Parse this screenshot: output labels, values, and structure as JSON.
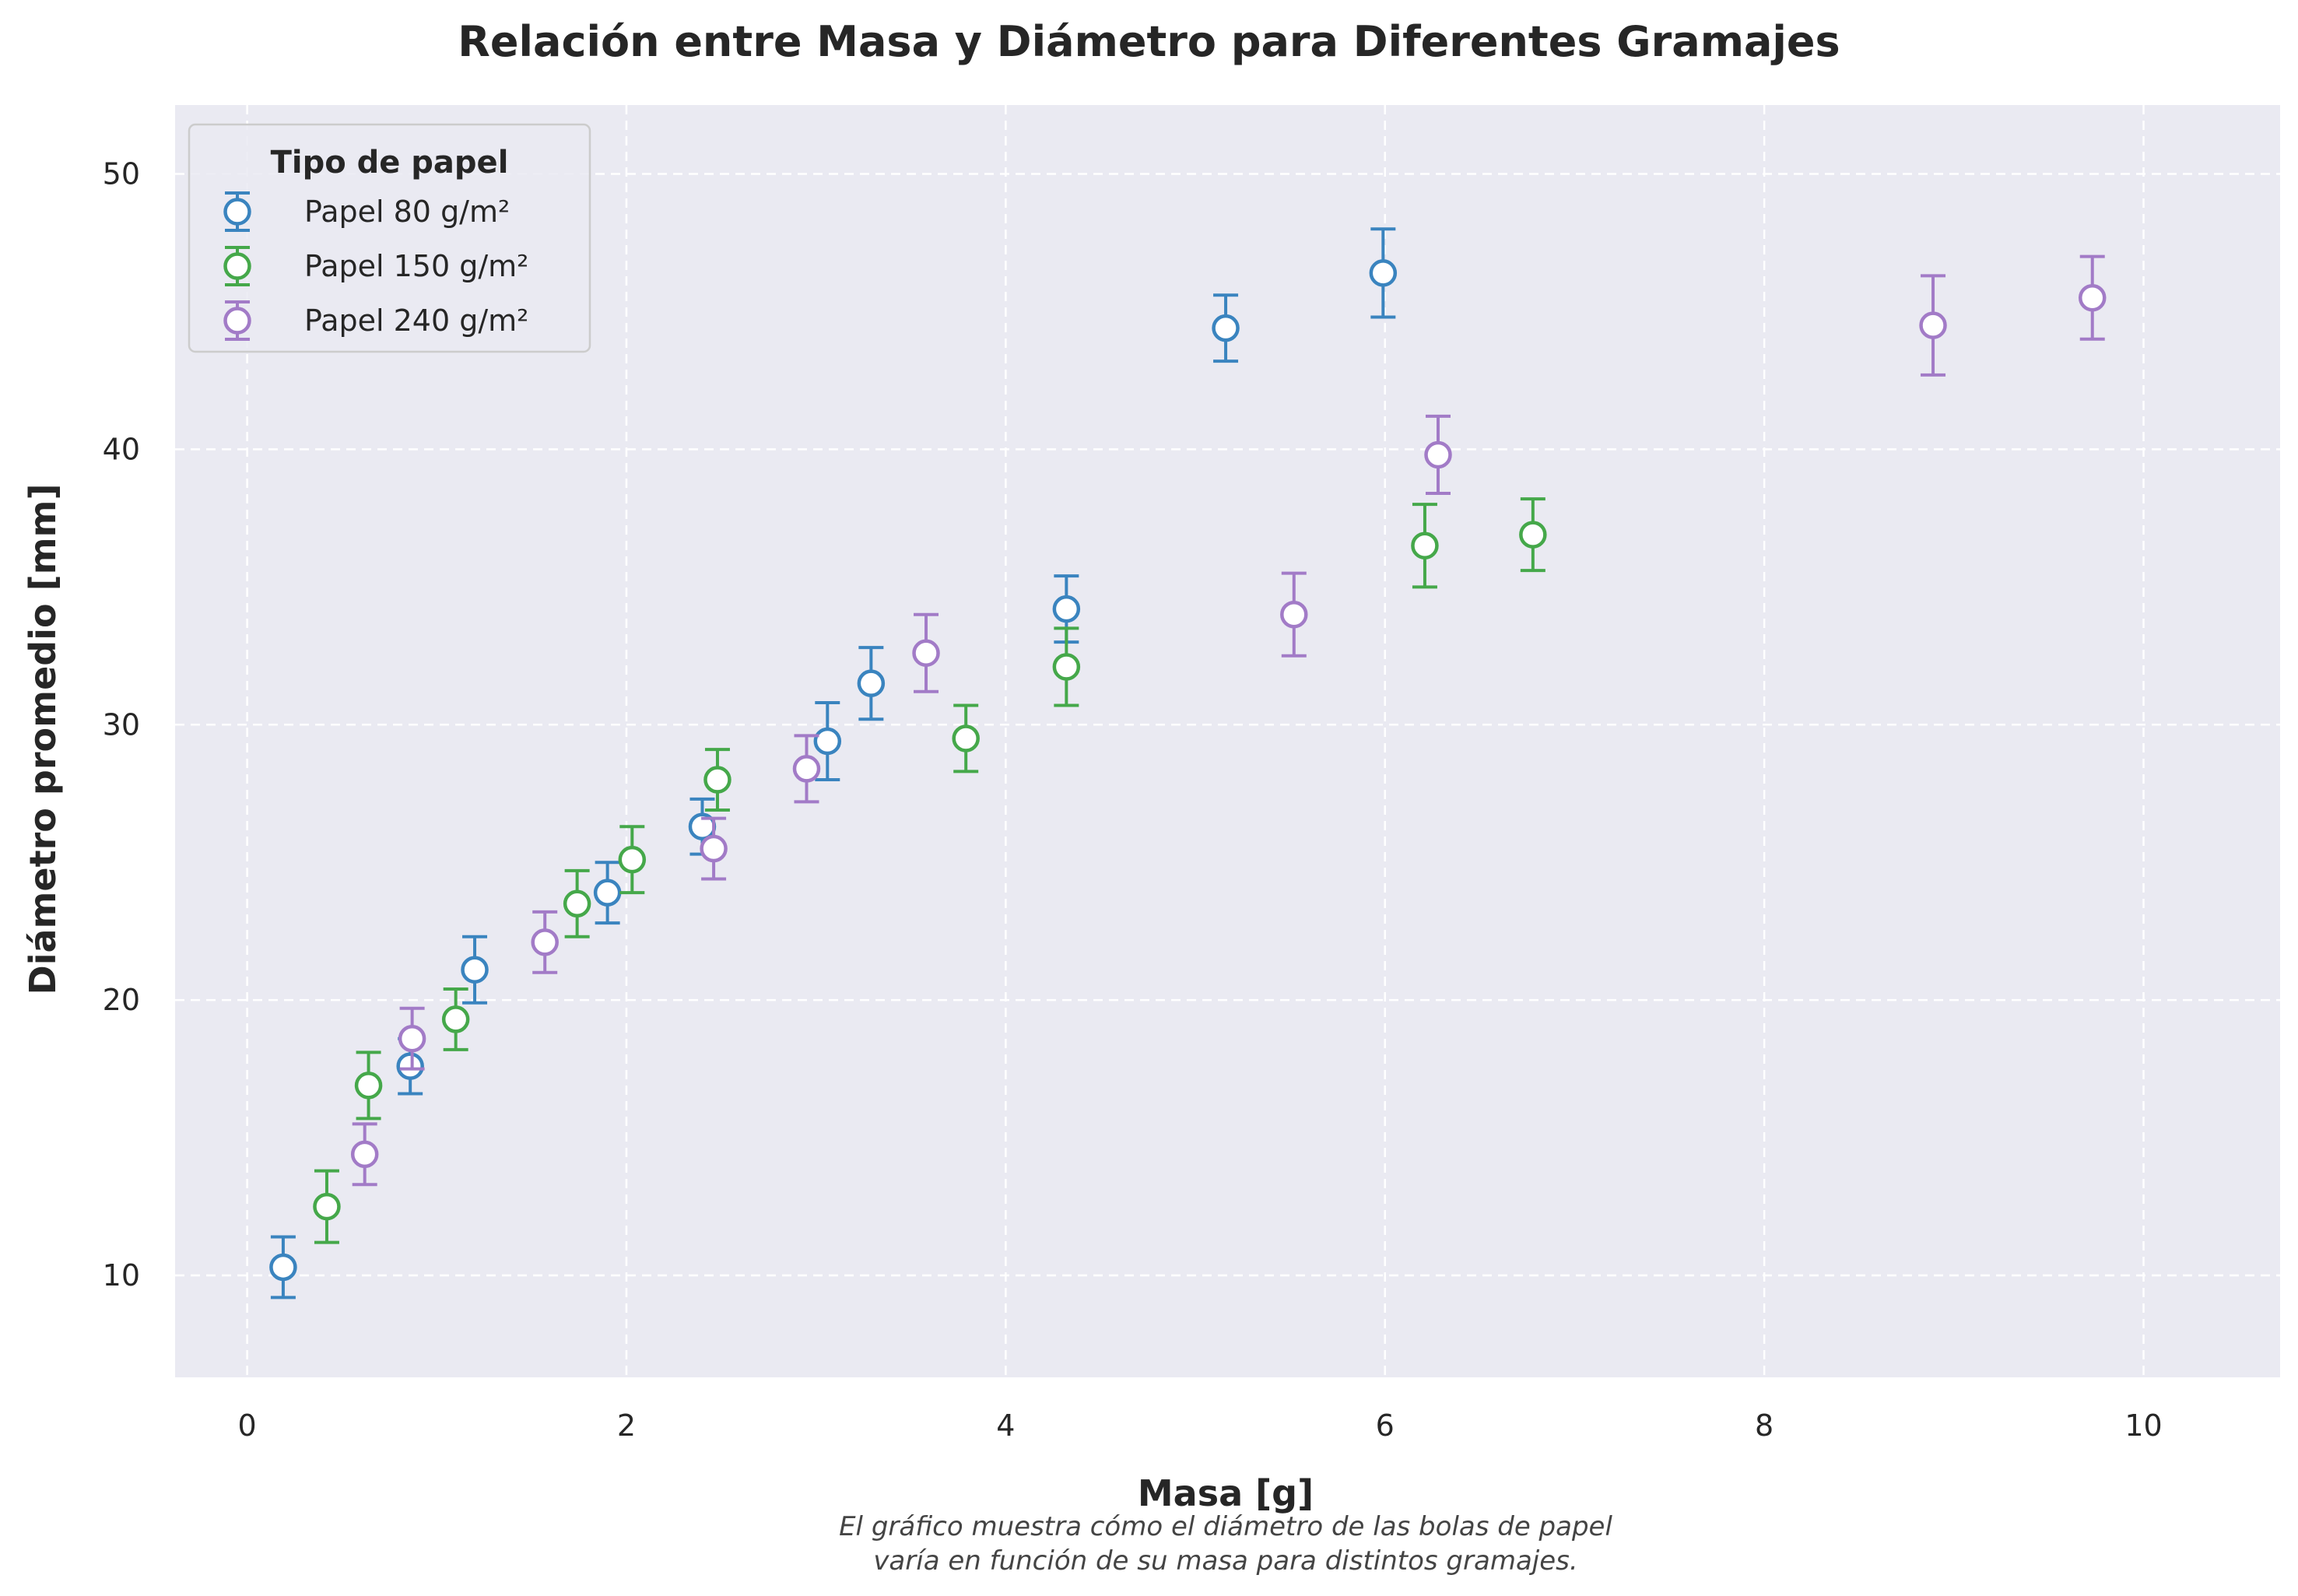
{
  "chart_data": {
    "type": "scatter",
    "title": "Relación entre Masa y Diámetro para Diferentes Gramajes",
    "xlabel": "Masa [g]",
    "ylabel": "Diámetro promedio [mm]",
    "xlim": [
      -0.38,
      10.72
    ],
    "ylim": [
      6.3,
      52.5
    ],
    "xticks": [
      0,
      2,
      4,
      6,
      8,
      10
    ],
    "yticks": [
      10,
      20,
      30,
      40,
      50
    ],
    "grid": true,
    "legend": {
      "title": "Tipo de papel",
      "placement": "top-left"
    },
    "caption": [
      "El gráfico muestra cómo el diámetro de las bolas de papel",
      "varía en función de su masa para distintos gramajes."
    ],
    "series": [
      {
        "name": "Papel 80 g/m²",
        "color": "#3a84bf",
        "points": [
          {
            "x": 0.19,
            "y": 10.3,
            "err": 1.1
          },
          {
            "x": 0.86,
            "y": 17.6,
            "err": 1.0
          },
          {
            "x": 1.2,
            "y": 21.1,
            "err": 1.2
          },
          {
            "x": 1.9,
            "y": 23.9,
            "err": 1.1
          },
          {
            "x": 2.4,
            "y": 26.3,
            "err": 1.0
          },
          {
            "x": 3.06,
            "y": 29.4,
            "err": 1.4
          },
          {
            "x": 3.29,
            "y": 31.5,
            "err": 1.3
          },
          {
            "x": 4.32,
            "y": 34.2,
            "err": 1.2
          },
          {
            "x": 5.16,
            "y": 44.4,
            "err": 1.2
          },
          {
            "x": 5.99,
            "y": 46.4,
            "err": 1.6
          }
        ]
      },
      {
        "name": "Papel 150 g/m²",
        "color": "#45a84a",
        "points": [
          {
            "x": 0.42,
            "y": 12.5,
            "err": 1.3
          },
          {
            "x": 0.64,
            "y": 16.9,
            "err": 1.2
          },
          {
            "x": 1.1,
            "y": 19.3,
            "err": 1.1
          },
          {
            "x": 1.74,
            "y": 23.5,
            "err": 1.2
          },
          {
            "x": 2.03,
            "y": 25.1,
            "err": 1.2
          },
          {
            "x": 2.48,
            "y": 28.0,
            "err": 1.1
          },
          {
            "x": 3.79,
            "y": 29.5,
            "err": 1.2
          },
          {
            "x": 4.32,
            "y": 32.1,
            "err": 1.4
          },
          {
            "x": 6.21,
            "y": 36.5,
            "err": 1.5
          },
          {
            "x": 6.78,
            "y": 36.9,
            "err": 1.3
          }
        ]
      },
      {
        "name": "Papel 240 g/m²",
        "color": "#a27bc7",
        "points": [
          {
            "x": 0.62,
            "y": 14.4,
            "err": 1.1
          },
          {
            "x": 0.87,
            "y": 18.6,
            "err": 1.1
          },
          {
            "x": 1.57,
            "y": 22.1,
            "err": 1.1
          },
          {
            "x": 2.46,
            "y": 25.5,
            "err": 1.1
          },
          {
            "x": 2.95,
            "y": 28.4,
            "err": 1.2
          },
          {
            "x": 3.58,
            "y": 32.6,
            "err": 1.4
          },
          {
            "x": 5.52,
            "y": 34.0,
            "err": 1.5
          },
          {
            "x": 6.28,
            "y": 39.8,
            "err": 1.4
          },
          {
            "x": 8.89,
            "y": 44.5,
            "err": 1.8
          },
          {
            "x": 9.73,
            "y": 45.5,
            "err": 1.5
          }
        ]
      }
    ]
  },
  "style": {
    "plot_background": "#eaeaf2",
    "grid_color": "#ffffff",
    "text_color": "#262626"
  }
}
